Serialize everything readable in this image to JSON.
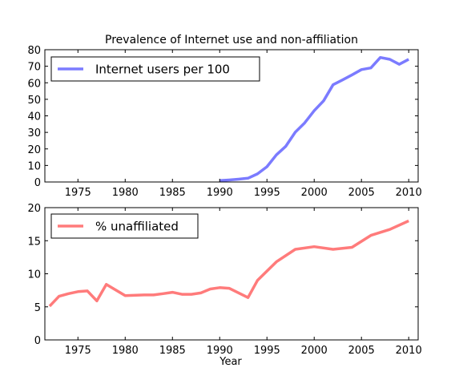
{
  "chart_data": [
    {
      "type": "line",
      "title": "Prevalence of Internet use and non-affiliation",
      "xlabel": "",
      "ylabel": "",
      "xlim": [
        1971.5,
        2011
      ],
      "ylim": [
        0,
        80
      ],
      "x_ticks": [
        1975,
        1980,
        1985,
        1990,
        1995,
        2000,
        2005,
        2010
      ],
      "y_ticks": [
        0,
        10,
        20,
        30,
        40,
        50,
        60,
        70,
        80
      ],
      "grid": false,
      "legend_position": "top-left",
      "series": [
        {
          "name": "Internet users per 100",
          "color": "#7b7bff",
          "x": [
            1990,
            1991,
            1992,
            1993,
            1994,
            1995,
            1996,
            1997,
            1998,
            1999,
            2000,
            2001,
            2002,
            2003,
            2004,
            2005,
            2006,
            2007,
            2008,
            2009,
            2010
          ],
          "y": [
            0.8,
            1.2,
            1.7,
            2.3,
            4.9,
            9.2,
            16.4,
            21.6,
            30.1,
            35.8,
            43.1,
            49.1,
            58.8,
            61.7,
            64.8,
            68.0,
            69.0,
            75.3,
            74.2,
            71.2,
            74.2
          ]
        }
      ]
    },
    {
      "type": "line",
      "title": "",
      "xlabel": "Year",
      "ylabel": "",
      "xlim": [
        1971.5,
        2011
      ],
      "ylim": [
        0,
        20
      ],
      "x_ticks": [
        1975,
        1980,
        1985,
        1990,
        1995,
        2000,
        2005,
        2010
      ],
      "y_ticks": [
        0,
        5,
        10,
        15,
        20
      ],
      "grid": false,
      "legend_position": "top-left",
      "series": [
        {
          "name": "% unaffiliated",
          "color": "#ff7b7b",
          "x": [
            1972,
            1973,
            1974,
            1975,
            1976,
            1977,
            1978,
            1980,
            1982,
            1983,
            1984,
            1985,
            1986,
            1987,
            1988,
            1989,
            1990,
            1991,
            1993,
            1994,
            1996,
            1998,
            2000,
            2002,
            2004,
            2006,
            2008,
            2010
          ],
          "y": [
            5.1,
            6.6,
            7.0,
            7.3,
            7.4,
            5.9,
            8.4,
            6.7,
            6.8,
            6.8,
            7.0,
            7.2,
            6.9,
            6.9,
            7.1,
            7.7,
            7.9,
            7.8,
            6.4,
            9.0,
            11.8,
            13.7,
            14.1,
            13.7,
            14.0,
            15.8,
            16.7,
            18.0
          ]
        }
      ]
    }
  ]
}
